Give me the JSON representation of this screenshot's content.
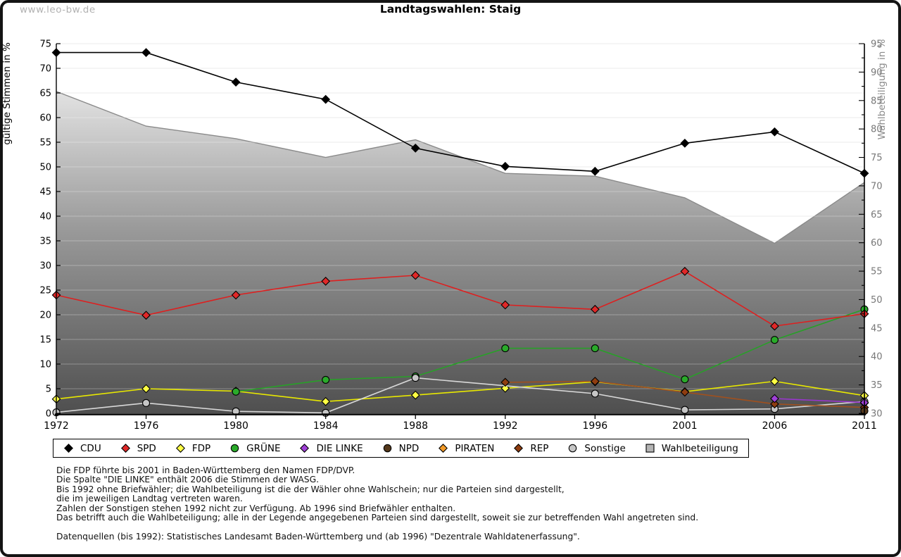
{
  "page": {
    "watermark": "www.leo-bw.de",
    "title": "Landtagswahlen: Staig"
  },
  "chart_data": {
    "type": "line",
    "title": "Landtagswahlen: Staig",
    "x": [
      1972,
      1976,
      1980,
      1984,
      1988,
      1992,
      1996,
      2001,
      2006,
      2011
    ],
    "axes": {
      "left": {
        "label": "gültige Stimmen in %",
        "min": 0,
        "max": 75,
        "tick_step": 5
      },
      "right": {
        "label": "Wahlbeteiligung in %",
        "min": 30,
        "max": 95,
        "tick_step": 5,
        "minor_step": 2.5
      }
    },
    "grid": true,
    "legend_position": "bottom",
    "series": [
      {
        "name": "CDU",
        "axis": "left",
        "kind": "line",
        "marker": "diamond",
        "color": "#000000",
        "fill": "#000000",
        "values": [
          73.2,
          73.2,
          67.2,
          63.7,
          53.8,
          50.1,
          49.1,
          54.8,
          57.1,
          48.7
        ]
      },
      {
        "name": "SPD",
        "axis": "left",
        "kind": "line",
        "marker": "diamond",
        "color": "#dd2020",
        "fill": "#e02828",
        "values": [
          24.0,
          19.9,
          24.0,
          26.8,
          28.0,
          22.0,
          21.1,
          28.8,
          17.7,
          20.2
        ]
      },
      {
        "name": "FDP",
        "axis": "left",
        "kind": "line",
        "marker": "diamond",
        "color": "#e8e800",
        "fill": "#ffff44",
        "values": [
          2.9,
          5.0,
          4.5,
          2.4,
          3.7,
          5.1,
          6.4,
          4.4,
          6.5,
          3.6
        ]
      },
      {
        "name": "GRÜNE",
        "axis": "left",
        "kind": "line",
        "marker": "circle",
        "color": "#28a028",
        "fill": "#2aaa2a",
        "values": [
          null,
          null,
          4.4,
          6.8,
          7.5,
          13.2,
          13.2,
          6.9,
          14.9,
          21.1
        ]
      },
      {
        "name": "DIE LINKE",
        "axis": "left",
        "kind": "line",
        "marker": "diamond",
        "color": "#9a35d0",
        "fill": "#a040d8",
        "values": [
          null,
          null,
          null,
          null,
          null,
          null,
          null,
          null,
          3.0,
          2.2
        ]
      },
      {
        "name": "NPD",
        "axis": "left",
        "kind": "line",
        "marker": "circle",
        "color": "#54381c",
        "fill": "#54381c",
        "values": [
          null,
          null,
          null,
          null,
          null,
          null,
          null,
          null,
          null,
          0.5
        ]
      },
      {
        "name": "PIRATEN",
        "axis": "left",
        "kind": "line",
        "marker": "diamond",
        "color": "#f29a28",
        "fill": "#f29a28",
        "values": [
          null,
          null,
          null,
          null,
          null,
          null,
          null,
          null,
          null,
          2.1
        ]
      },
      {
        "name": "REP",
        "axis": "left",
        "kind": "line",
        "marker": "diamond",
        "color": "#a0501e",
        "fill": "#8f3d10",
        "values": [
          null,
          null,
          null,
          null,
          null,
          6.3,
          6.5,
          4.3,
          1.9,
          1.2
        ]
      },
      {
        "name": "Sonstige",
        "axis": "left",
        "kind": "line",
        "marker": "circle",
        "color": "#d8d8d8",
        "fill": "#c6c6c6",
        "values": [
          0.2,
          2.1,
          0.4,
          0.1,
          7.2,
          null,
          4.0,
          0.7,
          0.9,
          2.4
        ]
      },
      {
        "name": "Wahlbeteiligung",
        "axis": "right",
        "kind": "area",
        "marker": "square",
        "color": "#8a8a8a",
        "fill": "#b4b4b4",
        "values": [
          86.6,
          80.5,
          78.3,
          75.0,
          78.1,
          72.2,
          71.7,
          67.9,
          59.9,
          70.6
        ]
      }
    ]
  },
  "footnotes": [
    "Die FDP führte bis 2001 in Baden-Württemberg den Namen FDP/DVP.",
    "Die Spalte \"DIE LINKE\" enthält 2006 die Stimmen der WASG.",
    "Bis 1992 ohne Briefwähler; die Wahlbeteiligung ist die der Wähler ohne Wahlschein; nur die Parteien sind dargestellt,",
    "die im jeweiligen Landtag vertreten waren.",
    "Zahlen der Sonstigen stehen 1992 nicht zur Verfügung. Ab 1996 sind Briefwähler enthalten.",
    "Das betrifft auch die Wahlbeteiligung; alle in der Legende angegebenen Parteien sind dargestellt, soweit sie zur betreffenden Wahl angetreten sind.",
    "",
    "Datenquellen (bis 1992): Statistisches Landesamt Baden-Württemberg und (ab 1996) \"Dezentrale Wahldatenerfassung\"."
  ]
}
